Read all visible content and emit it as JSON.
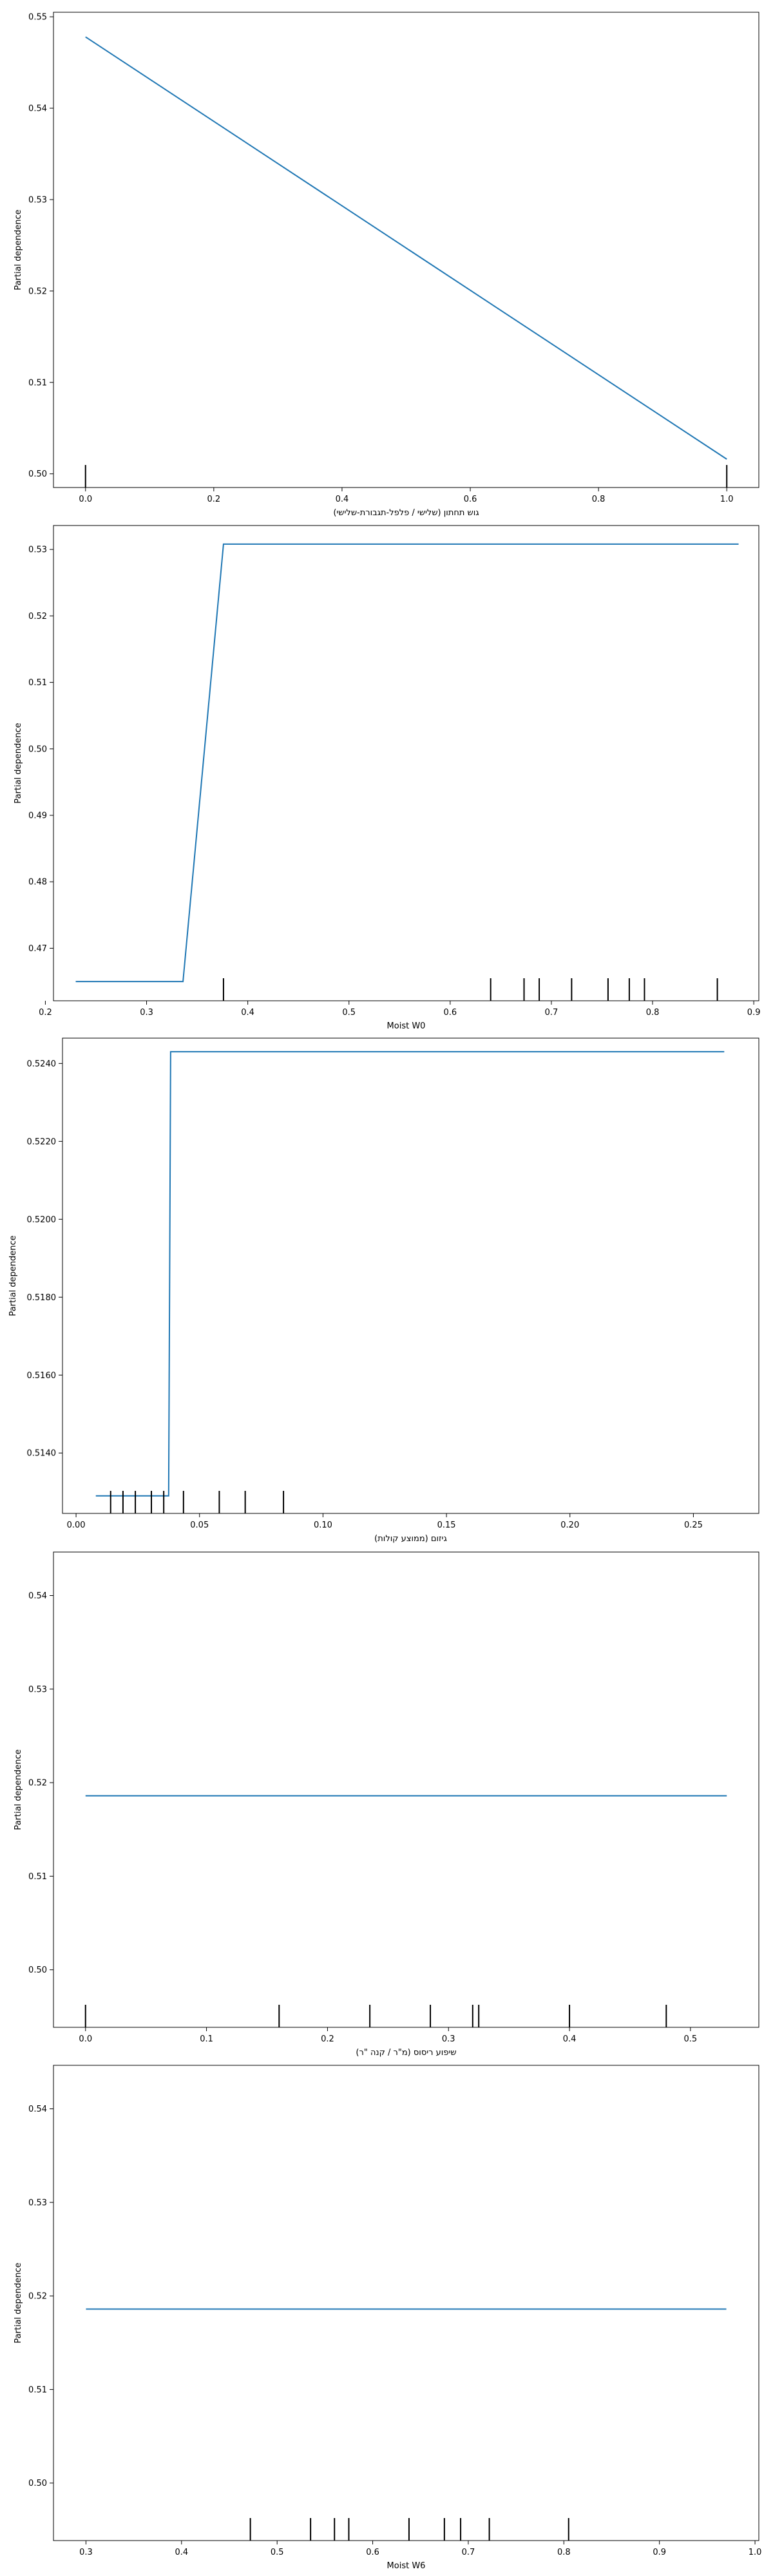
{
  "figure": {
    "line_color": "#1f77b4",
    "rug_color": "#000000",
    "background": "#ffffff"
  },
  "chart_data": [
    {
      "type": "line",
      "xlabel": "גוש תחתון (שלישי / פלפל-תגבורת-שלישי)",
      "ylabel": "Partial dependence",
      "xlim": [
        -0.05,
        1.05
      ],
      "ylim": [
        0.4985,
        0.5505
      ],
      "xticks": [
        0.0,
        0.2,
        0.4,
        0.6,
        0.8,
        1.0
      ],
      "xtick_labels": [
        "0.0",
        "0.2",
        "0.4",
        "0.6",
        "0.8",
        "1.0"
      ],
      "yticks": [
        0.5,
        0.51,
        0.52,
        0.53,
        0.54,
        0.55
      ],
      "ytick_labels": [
        "0.50",
        "0.51",
        "0.52",
        "0.53",
        "0.54",
        "0.55"
      ],
      "series": [
        {
          "x": [
            0.0,
            1.0
          ],
          "y": [
            0.5478,
            0.5016
          ]
        }
      ],
      "rug": [
        0.0,
        1.0
      ],
      "grid": false
    },
    {
      "type": "line",
      "xlabel": "Moist W0",
      "ylabel": "Partial dependence",
      "xlim": [
        0.208,
        0.905
      ],
      "ylim": [
        0.4621,
        0.5336
      ],
      "xticks": [
        0.2,
        0.3,
        0.4,
        0.5,
        0.6,
        0.7,
        0.8,
        0.9
      ],
      "xtick_labels": [
        "0.2",
        "0.3",
        "0.4",
        "0.5",
        "0.6",
        "0.7",
        "0.8",
        "0.9"
      ],
      "yticks": [
        0.47,
        0.48,
        0.49,
        0.5,
        0.51,
        0.52,
        0.53
      ],
      "ytick_labels": [
        "0.47",
        "0.48",
        "0.49",
        "0.50",
        "0.51",
        "0.52",
        "0.53"
      ],
      "series": [
        {
          "x": [
            0.23,
            0.336,
            0.376,
            0.885
          ],
          "y": [
            0.465,
            0.465,
            0.5308,
            0.5308
          ]
        }
      ],
      "rug": [
        0.376,
        0.64,
        0.673,
        0.688,
        0.72,
        0.756,
        0.777,
        0.792,
        0.864
      ],
      "grid": false
    },
    {
      "type": "line",
      "xlabel": "גיזום (ממוצע קולות)",
      "ylabel": "Partial dependence",
      "xlim": [
        -0.0055,
        0.2765
      ],
      "ylim": [
        0.51245,
        0.52465
      ],
      "xticks": [
        0.0,
        0.05,
        0.1,
        0.15,
        0.2,
        0.25
      ],
      "xtick_labels": [
        "0.00",
        "0.05",
        "0.10",
        "0.15",
        "0.20",
        "0.25"
      ],
      "yticks": [
        0.514,
        0.516,
        0.518,
        0.52,
        0.522,
        0.524
      ],
      "ytick_labels": [
        "0.5140",
        "0.5160",
        "0.5180",
        "0.5200",
        "0.5220",
        "0.5240"
      ],
      "series": [
        {
          "x": [
            0.008,
            0.0375,
            0.0383,
            0.2625
          ],
          "y": [
            0.5129,
            0.5129,
            0.5243,
            0.5243
          ]
        }
      ],
      "rug": [
        0.014,
        0.019,
        0.024,
        0.0305,
        0.0355,
        0.0435,
        0.058,
        0.0685,
        0.084
      ],
      "grid": false
    },
    {
      "type": "line",
      "xlabel": "שיפוע ריסוס (מ\"ר / קנה \"ר)",
      "ylabel": "Partial dependence",
      "xlim": [
        -0.0265,
        0.5565
      ],
      "ylim": [
        0.49385,
        0.54465
      ],
      "xticks": [
        0.0,
        0.1,
        0.2,
        0.3,
        0.4,
        0.5
      ],
      "xtick_labels": [
        "0.0",
        "0.1",
        "0.2",
        "0.3",
        "0.4",
        "0.5"
      ],
      "yticks": [
        0.5,
        0.51,
        0.52,
        0.53,
        0.54
      ],
      "ytick_labels": [
        "0.50",
        "0.51",
        "0.52",
        "0.53",
        "0.54"
      ],
      "series": [
        {
          "x": [
            0.0,
            0.53
          ],
          "y": [
            0.5186,
            0.5186
          ]
        }
      ],
      "rug": [
        0.0,
        0.16,
        0.235,
        0.285,
        0.32,
        0.325,
        0.4,
        0.48
      ],
      "grid": false
    },
    {
      "type": "line",
      "xlabel": "Moist W6",
      "ylabel": "Partial dependence",
      "xlim": [
        0.266,
        1.004
      ],
      "ylim": [
        0.49385,
        0.54465
      ],
      "xticks": [
        0.3,
        0.4,
        0.5,
        0.6,
        0.7,
        0.8,
        0.9,
        1.0
      ],
      "xtick_labels": [
        "0.3",
        "0.4",
        "0.5",
        "0.6",
        "0.7",
        "0.8",
        "0.9",
        "1.0"
      ],
      "yticks": [
        0.5,
        0.51,
        0.52,
        0.53,
        0.54
      ],
      "ytick_labels": [
        "0.50",
        "0.51",
        "0.52",
        "0.53",
        "0.54"
      ],
      "series": [
        {
          "x": [
            0.3,
            0.97
          ],
          "y": [
            0.5186,
            0.5186
          ]
        }
      ],
      "rug": [
        0.472,
        0.535,
        0.56,
        0.575,
        0.638,
        0.675,
        0.692,
        0.722,
        0.805
      ],
      "grid": false
    }
  ]
}
